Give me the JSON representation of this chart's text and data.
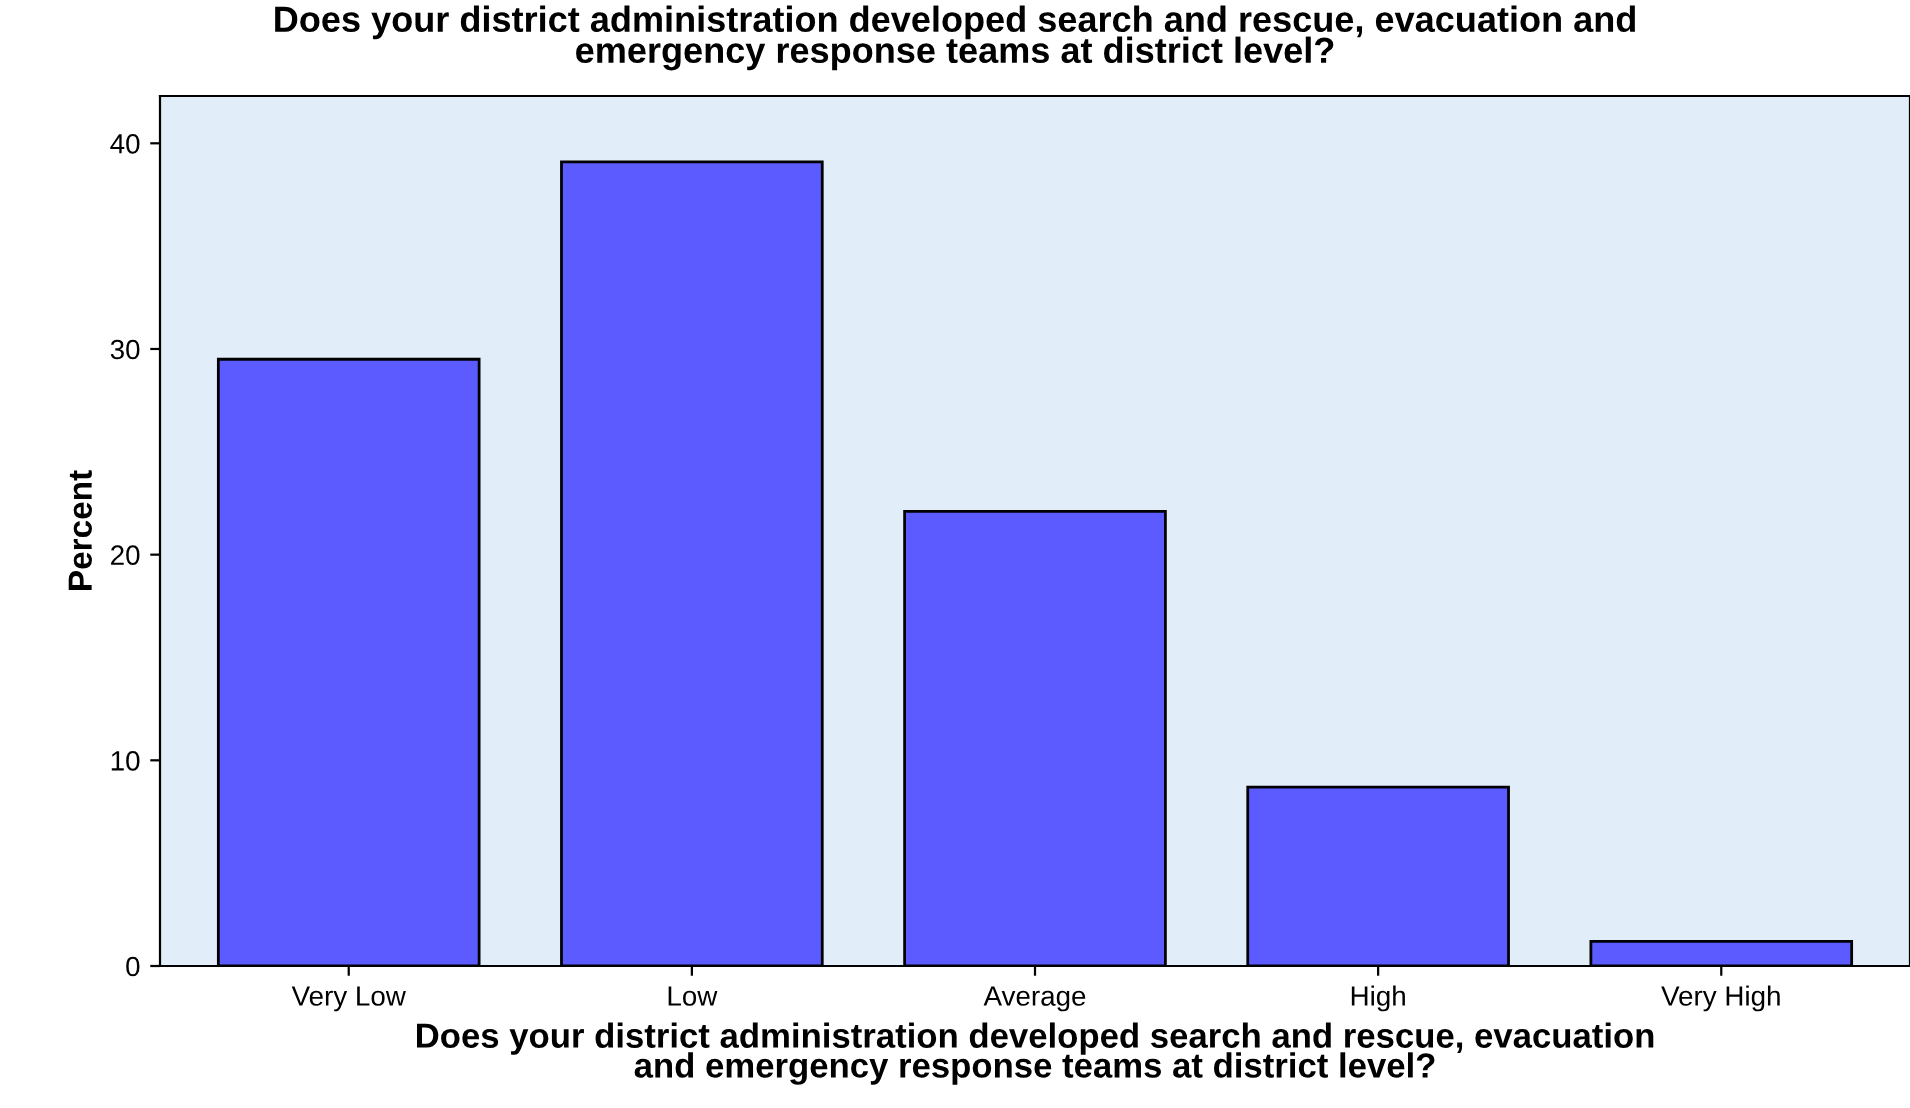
{
  "chart_data": {
    "type": "bar",
    "title": "Does your district administration developed search and rescue, evacuation and\nemergency response teams at district level?",
    "xlabel": "Does your district administration developed search and rescue, evacuation\nand emergency response teams at district level?",
    "ylabel": "Percent",
    "categories": [
      "Very Low",
      "Low",
      "Average",
      "High",
      "Very High"
    ],
    "values": [
      29.5,
      39.1,
      22.1,
      8.7,
      1.2
    ],
    "color": "#5b5bff",
    "ylim": [
      0,
      42.3
    ],
    "yticks": [
      0,
      10,
      20,
      30,
      40
    ],
    "grid": false
  }
}
